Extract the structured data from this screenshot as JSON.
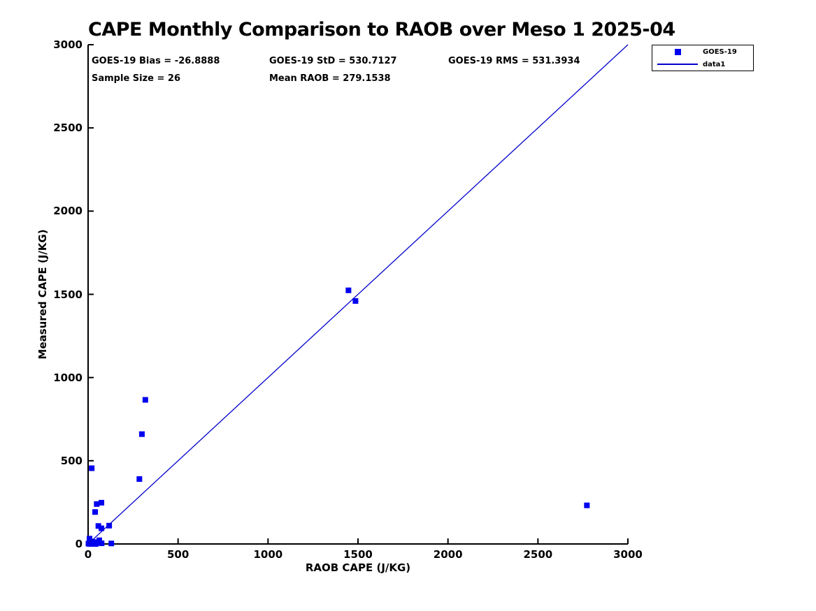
{
  "title": "CAPE Monthly Comparison to RAOB over Meso 1 2025-04",
  "stats": {
    "bias": "GOES-19 Bias = -26.8888",
    "std": "GOES-19 StD = 530.7127",
    "rms": "GOES-19 RMS = 531.3934",
    "sample_size": "Sample Size = 26",
    "mean_raob": "Mean RAOB = 279.1538"
  },
  "legend": {
    "entries": [
      {
        "label": "GOES-19",
        "symbol": "square-marker"
      },
      {
        "label": "data1",
        "symbol": "line"
      }
    ]
  },
  "colors": {
    "marker": "#0000f0",
    "line": "#0000cd",
    "axis": "#000000",
    "text": "#000000",
    "background": "#ffffff"
  },
  "chart_data": {
    "type": "scatter",
    "title": "CAPE Monthly Comparison to RAOB over Meso 1 2025-04",
    "xlabel": "RAOB CAPE (J/KG)",
    "ylabel": "Measured CAPE (J/KG)",
    "xlim": [
      0,
      3000
    ],
    "ylim": [
      0,
      3000
    ],
    "xticks": [
      0,
      500,
      1000,
      1500,
      2000,
      2500,
      3000
    ],
    "yticks": [
      0,
      500,
      1000,
      1500,
      2000,
      2500,
      3000
    ],
    "grid": false,
    "legend_position": "northeast-outside",
    "sample_size": 26,
    "series": [
      {
        "name": "GOES-19",
        "type": "scatter",
        "marker": "square",
        "color": "#0000f0",
        "points": [
          [
            2,
            2
          ],
          [
            8,
            32
          ],
          [
            10,
            0
          ],
          [
            15,
            8
          ],
          [
            20,
            2
          ],
          [
            25,
            14
          ],
          [
            30,
            0
          ],
          [
            35,
            6
          ],
          [
            42,
            0
          ],
          [
            50,
            10
          ],
          [
            62,
            22
          ],
          [
            75,
            4
          ],
          [
            20,
            455
          ],
          [
            39,
            192
          ],
          [
            48,
            240
          ],
          [
            74,
            248
          ],
          [
            57,
            108
          ],
          [
            74,
            94
          ],
          [
            117,
            110
          ],
          [
            129,
            3
          ],
          [
            285,
            390
          ],
          [
            299,
            660
          ],
          [
            318,
            866
          ],
          [
            1447,
            1524
          ],
          [
            1486,
            1460
          ],
          [
            2772,
            232
          ]
        ]
      },
      {
        "name": "data1",
        "type": "line",
        "color": "#0000cd",
        "points": [
          [
            0,
            0
          ],
          [
            3000,
            3000
          ]
        ]
      }
    ]
  }
}
